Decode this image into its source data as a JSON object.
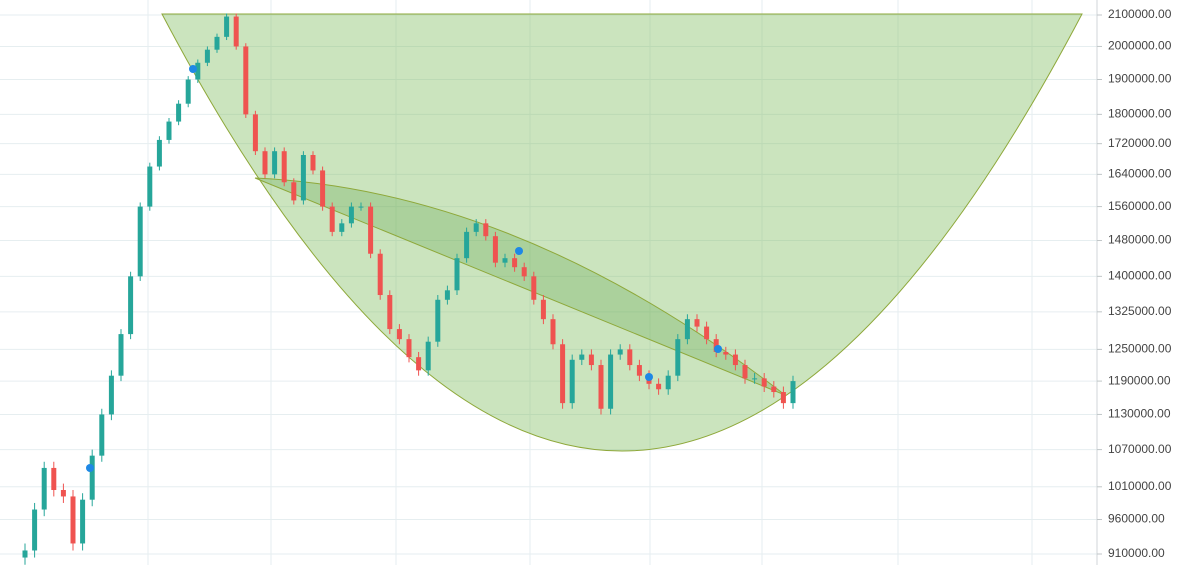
{
  "chart_data": {
    "type": "candlestick",
    "log_scale": true,
    "grid": true,
    "up_color": "#26a69a",
    "down_color": "#ef5350",
    "ylim": [
      910000,
      2100000
    ],
    "yticks": [
      {
        "value": 2100000,
        "label": "2100000.00"
      },
      {
        "value": 2000000,
        "label": "2000000.00"
      },
      {
        "value": 1900000,
        "label": "1900000.00"
      },
      {
        "value": 1800000,
        "label": "1800000.00"
      },
      {
        "value": 1720000,
        "label": "1720000.00"
      },
      {
        "value": 1640000,
        "label": "1640000.00"
      },
      {
        "value": 1560000,
        "label": "1560000.00"
      },
      {
        "value": 1480000,
        "label": "1480000.00"
      },
      {
        "value": 1400000,
        "label": "1400000.00"
      },
      {
        "value": 1325000,
        "label": "1325000.00"
      },
      {
        "value": 1250000,
        "label": "1250000.00"
      },
      {
        "value": 1190000,
        "label": "1190000.00"
      },
      {
        "value": 1130000,
        "label": "1130000.00"
      },
      {
        "value": 1070000,
        "label": "1070000.00"
      },
      {
        "value": 1010000,
        "label": "1010000.00"
      },
      {
        "value": 960000,
        "label": "960000.00"
      },
      {
        "value": 910000,
        "label": "910000.00"
      }
    ],
    "open": [
      905000,
      915000,
      975000,
      1040000,
      1005000,
      995000,
      925000,
      990000,
      1060000,
      1130000,
      1200000,
      1280000,
      1400000,
      1560000,
      1660000,
      1730000,
      1780000,
      1830000,
      1900000,
      1950000,
      1990000,
      2030000,
      2095000,
      2000000,
      1800000,
      1700000,
      1640000,
      1700000,
      1620000,
      1575000,
      1690000,
      1650000,
      1560000,
      1500000,
      1520000,
      1560000,
      1560000,
      1450000,
      1360000,
      1290000,
      1270000,
      1235000,
      1210000,
      1265000,
      1350000,
      1370000,
      1440000,
      1500000,
      1520000,
      1490000,
      1430000,
      1440000,
      1420000,
      1400000,
      1350000,
      1310000,
      1260000,
      1150000,
      1230000,
      1240000,
      1220000,
      1140000,
      1240000,
      1250000,
      1220000,
      1200000,
      1185000,
      1175000,
      1200000,
      1270000,
      1310000,
      1295000,
      1270000,
      1245000,
      1240000,
      1220000,
      1195000,
      1195000,
      1180000,
      1170000,
      1150000
    ],
    "high": [
      925000,
      985000,
      1050000,
      1050000,
      1015000,
      1005000,
      1000000,
      1070000,
      1140000,
      1210000,
      1290000,
      1410000,
      1570000,
      1670000,
      1740000,
      1790000,
      1840000,
      1910000,
      1960000,
      2000000,
      2040000,
      2105000,
      2105000,
      2010000,
      1810000,
      1710000,
      1710000,
      1710000,
      1630000,
      1700000,
      1700000,
      1660000,
      1570000,
      1530000,
      1570000,
      1570000,
      1570000,
      1460000,
      1370000,
      1300000,
      1280000,
      1245000,
      1275000,
      1360000,
      1380000,
      1450000,
      1510000,
      1530000,
      1530000,
      1500000,
      1450000,
      1450000,
      1430000,
      1410000,
      1360000,
      1320000,
      1270000,
      1240000,
      1250000,
      1250000,
      1230000,
      1250000,
      1260000,
      1260000,
      1230000,
      1210000,
      1195000,
      1210000,
      1280000,
      1320000,
      1320000,
      1305000,
      1280000,
      1255000,
      1250000,
      1230000,
      1205000,
      1205000,
      1190000,
      1180000,
      1200000
    ],
    "low": [
      895000,
      905000,
      965000,
      995000,
      985000,
      915000,
      915000,
      980000,
      1050000,
      1120000,
      1190000,
      1270000,
      1390000,
      1550000,
      1650000,
      1720000,
      1770000,
      1820000,
      1890000,
      1940000,
      1980000,
      2020000,
      1990000,
      1790000,
      1690000,
      1630000,
      1630000,
      1610000,
      1565000,
      1565000,
      1640000,
      1550000,
      1490000,
      1490000,
      1510000,
      1550000,
      1440000,
      1350000,
      1280000,
      1260000,
      1225000,
      1200000,
      1200000,
      1255000,
      1340000,
      1360000,
      1430000,
      1490000,
      1480000,
      1420000,
      1420000,
      1410000,
      1390000,
      1340000,
      1300000,
      1250000,
      1140000,
      1140000,
      1220000,
      1210000,
      1130000,
      1130000,
      1230000,
      1210000,
      1190000,
      1175000,
      1165000,
      1165000,
      1190000,
      1260000,
      1285000,
      1260000,
      1235000,
      1230000,
      1210000,
      1185000,
      1185000,
      1170000,
      1160000,
      1140000,
      1140000
    ],
    "close": [
      915000,
      975000,
      1040000,
      1005000,
      995000,
      925000,
      990000,
      1060000,
      1130000,
      1200000,
      1280000,
      1400000,
      1560000,
      1660000,
      1730000,
      1780000,
      1830000,
      1900000,
      1950000,
      1990000,
      2030000,
      2095000,
      2000000,
      1800000,
      1700000,
      1640000,
      1700000,
      1620000,
      1575000,
      1690000,
      1650000,
      1560000,
      1500000,
      1520000,
      1560000,
      1560000,
      1450000,
      1360000,
      1290000,
      1270000,
      1235000,
      1210000,
      1265000,
      1350000,
      1370000,
      1440000,
      1500000,
      1520000,
      1490000,
      1430000,
      1440000,
      1420000,
      1400000,
      1350000,
      1310000,
      1260000,
      1150000,
      1230000,
      1240000,
      1220000,
      1140000,
      1240000,
      1250000,
      1220000,
      1200000,
      1185000,
      1175000,
      1200000,
      1270000,
      1310000,
      1295000,
      1270000,
      1245000,
      1240000,
      1220000,
      1195000,
      1195000,
      1180000,
      1170000,
      1150000,
      1190000
    ]
  }
}
